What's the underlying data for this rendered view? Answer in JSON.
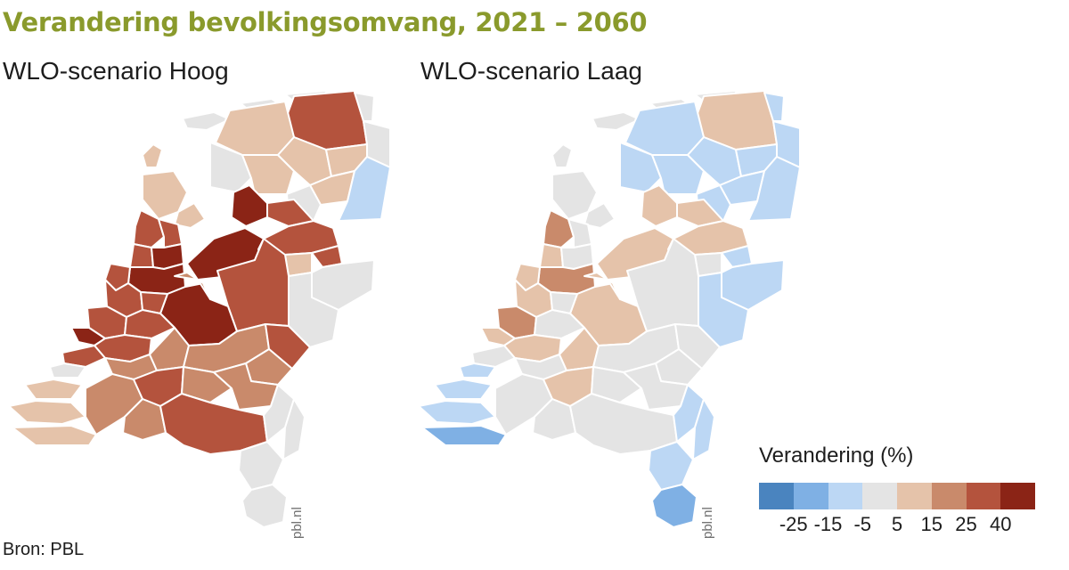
{
  "title": "Verandering bevolkingsomvang, 2021 – 2060",
  "maps": [
    {
      "subtitle": "WLO-scenario Hoog",
      "credit": "pbl.nl"
    },
    {
      "subtitle": "WLO-scenario Laag",
      "credit": "pbl.nl"
    }
  ],
  "legend": {
    "title": "Verandering (%)",
    "colors": [
      "#4a84bf",
      "#7fb0e4",
      "#bcd7f4",
      "#e4e4e4",
      "#e5c3aa",
      "#c98a6b",
      "#b4533d",
      "#8b2416"
    ],
    "ticks": [
      "-25",
      "-15",
      "-5",
      "5",
      "15",
      "25",
      "40"
    ]
  },
  "source": "Bron: PBL"
}
